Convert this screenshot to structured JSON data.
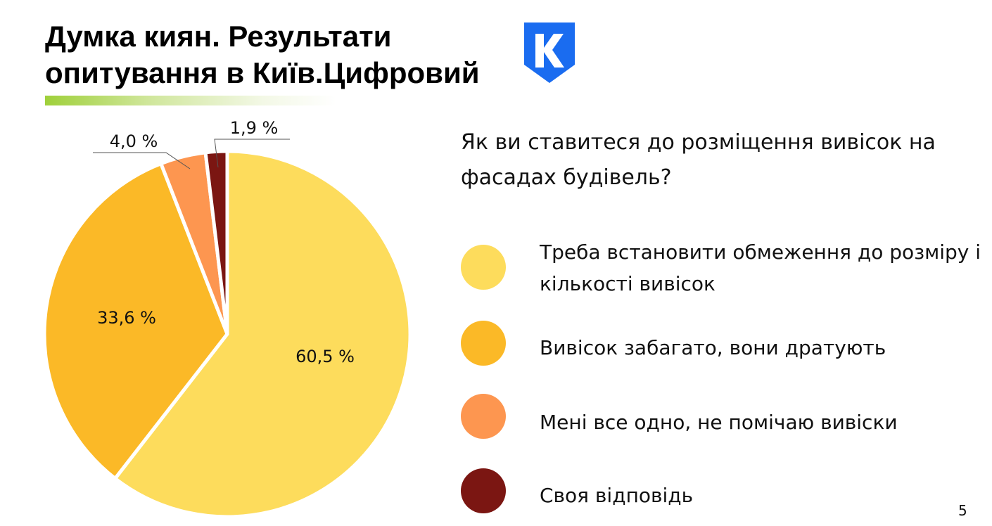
{
  "title": {
    "line1": "Думка киян. Результати",
    "line2": "опитування в Київ.Цифровий"
  },
  "logo": {
    "icon": "kyiv-digital-shield-logo",
    "color": "#1a6cf0"
  },
  "question": "Як ви ставитеся до розміщення вивісок на фасадах будівель?",
  "chart_data": {
    "type": "pie",
    "title": "",
    "slices": [
      {
        "label": "Треба встановити обмеження до розміру і кількості вивісок",
        "value": 60.5,
        "display": "60,5 %",
        "color": "#fddc5c"
      },
      {
        "label": "Вивісок забагато, вони дратують",
        "value": 33.6,
        "display": "33,6 %",
        "color": "#fbb927"
      },
      {
        "label": "Мені все одно, не помічаю вивіски",
        "value": 4.0,
        "display": "4,0 %",
        "color": "#fd9650"
      },
      {
        "label": "Своя відповідь",
        "value": 1.9,
        "display": "1,9 %",
        "color": "#7b1612"
      }
    ],
    "legend_position": "right"
  },
  "page_number": "5"
}
